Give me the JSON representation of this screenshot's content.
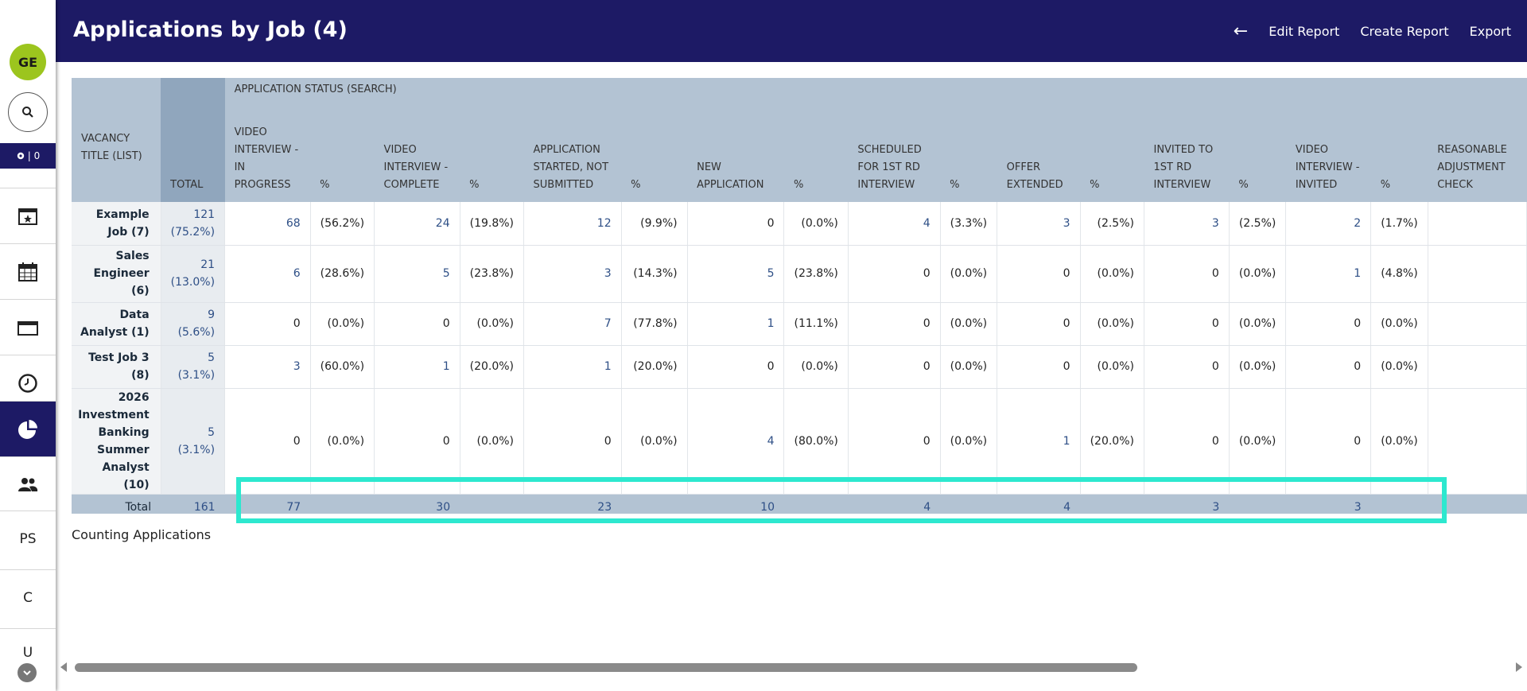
{
  "sidebar": {
    "avatar": "GE",
    "badge_count": "| 0",
    "items": [
      "PS",
      "C",
      "U"
    ]
  },
  "header": {
    "title": "Applications by Job (4)",
    "back": "←",
    "edit": "Edit Report",
    "create": "Create Report",
    "export": "Export"
  },
  "table": {
    "group_label": "APPLICATION STATUS (SEARCH)",
    "vacancy_header": "VACANCY TITLE (LIST)",
    "total_header": "TOTAL",
    "columns": [
      "VIDEO INTERVIEW - IN PROGRESS",
      "%",
      "VIDEO INTERVIEW - COMPLETE",
      "%",
      "APPLICATION STARTED, NOT SUBMITTED",
      "%",
      "NEW APPLICATION",
      "%",
      "SCHEDULED FOR 1ST RD INTERVIEW",
      "%",
      "OFFER EXTENDED",
      "%",
      "INVITED TO 1ST RD INTERVIEW",
      "%",
      "VIDEO INTERVIEW - INVITED",
      "%",
      "REASONABLE ADJUSTMENT CHECK"
    ],
    "rows": [
      {
        "job": "Example Job (7)",
        "total": "121",
        "total_pct": "(75.2%)",
        "cells": [
          "68",
          "(56.2%)",
          "24",
          "(19.8%)",
          "12",
          "(9.9%)",
          "0",
          "(0.0%)",
          "4",
          "(3.3%)",
          "3",
          "(2.5%)",
          "3",
          "(2.5%)",
          "2",
          "(1.7%)",
          ""
        ]
      },
      {
        "job": "Sales Engineer (6)",
        "total": "21",
        "total_pct": "(13.0%)",
        "cells": [
          "6",
          "(28.6%)",
          "5",
          "(23.8%)",
          "3",
          "(14.3%)",
          "5",
          "(23.8%)",
          "0",
          "(0.0%)",
          "0",
          "(0.0%)",
          "0",
          "(0.0%)",
          "1",
          "(4.8%)",
          ""
        ]
      },
      {
        "job": "Data Analyst (1)",
        "total": "9",
        "total_pct": "(5.6%)",
        "cells": [
          "0",
          "(0.0%)",
          "0",
          "(0.0%)",
          "7",
          "(77.8%)",
          "1",
          "(11.1%)",
          "0",
          "(0.0%)",
          "0",
          "(0.0%)",
          "0",
          "(0.0%)",
          "0",
          "(0.0%)",
          ""
        ]
      },
      {
        "job": "Test Job 3 (8)",
        "total": "5",
        "total_pct": "(3.1%)",
        "cells": [
          "3",
          "(60.0%)",
          "1",
          "(20.0%)",
          "1",
          "(20.0%)",
          "0",
          "(0.0%)",
          "0",
          "(0.0%)",
          "0",
          "(0.0%)",
          "0",
          "(0.0%)",
          "0",
          "(0.0%)",
          ""
        ]
      },
      {
        "job": "2026 Investment Banking Summer Analyst (10)",
        "total": "5",
        "total_pct": "(3.1%)",
        "cells": [
          "0",
          "(0.0%)",
          "0",
          "(0.0%)",
          "0",
          "(0.0%)",
          "4",
          "(80.0%)",
          "0",
          "(0.0%)",
          "1",
          "(20.0%)",
          "0",
          "(0.0%)",
          "0",
          "(0.0%)",
          ""
        ]
      }
    ],
    "total_row": {
      "label": "Total",
      "total": "161",
      "cells": [
        "77",
        "",
        "30",
        "",
        "23",
        "",
        "10",
        "",
        "4",
        "",
        "4",
        "",
        "3",
        "",
        "3",
        "",
        ""
      ]
    }
  },
  "footer_note": "Counting Applications"
}
